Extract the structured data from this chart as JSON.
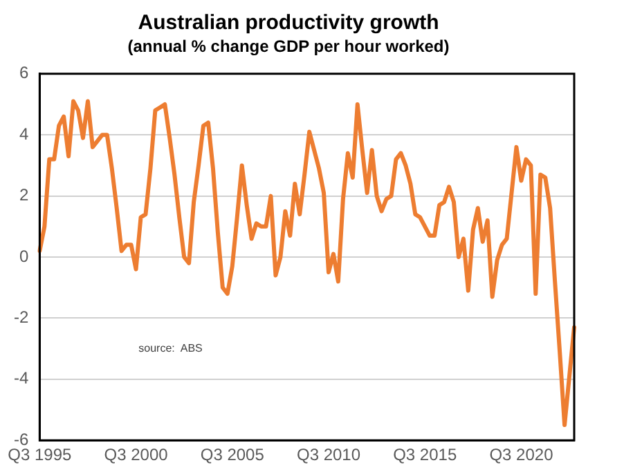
{
  "chart_data": {
    "type": "line",
    "title": "Australian productivity growth",
    "subtitle": "(annual % change GDP per hour worked)",
    "categories": [
      "Q3 1995",
      null,
      null,
      null,
      null,
      null,
      null,
      null,
      null,
      null,
      null,
      null,
      null,
      null,
      null,
      null,
      null,
      null,
      null,
      null,
      "Q3 2000",
      null,
      null,
      null,
      null,
      null,
      null,
      null,
      null,
      null,
      null,
      null,
      null,
      null,
      null,
      null,
      null,
      null,
      null,
      null,
      "Q3 2005",
      null,
      null,
      null,
      null,
      null,
      null,
      null,
      null,
      null,
      null,
      null,
      null,
      null,
      null,
      null,
      null,
      null,
      null,
      null,
      "Q3 2010",
      null,
      null,
      null,
      null,
      null,
      null,
      null,
      null,
      null,
      null,
      null,
      null,
      null,
      null,
      null,
      null,
      null,
      null,
      null,
      "Q3 2015",
      null,
      null,
      null,
      null,
      null,
      null,
      null,
      null,
      null,
      null,
      null,
      null,
      null,
      null,
      null,
      null,
      null,
      null,
      null,
      "Q3 2020",
      null,
      null,
      null,
      null,
      null,
      null,
      null,
      null,
      null,
      null,
      null
    ],
    "series": [
      {
        "color": "#ed7d31",
        "values": [
          0.2,
          1.0,
          3.2,
          3.2,
          4.3,
          4.6,
          3.3,
          5.1,
          4.8,
          3.9,
          5.1,
          3.6,
          3.8,
          4.0,
          4.0,
          2.9,
          1.6,
          0.2,
          0.4,
          0.4,
          -0.4,
          1.3,
          1.4,
          2.9,
          4.8,
          4.9,
          5.0,
          3.9,
          2.7,
          1.3,
          0.0,
          -0.2,
          1.8,
          3.0,
          4.3,
          4.4,
          2.9,
          0.8,
          -1.0,
          -1.2,
          -0.3,
          1.3,
          3.0,
          1.7,
          0.6,
          1.1,
          1.0,
          1.0,
          2.0,
          -0.6,
          0.0,
          1.5,
          0.7,
          2.4,
          1.4,
          2.7,
          4.1,
          3.5,
          2.9,
          2.1,
          -0.5,
          0.1,
          -0.8,
          1.9,
          3.4,
          2.6,
          5.0,
          3.5,
          2.1,
          3.5,
          2.0,
          1.5,
          1.9,
          2.0,
          3.2,
          3.4,
          3.0,
          2.4,
          1.4,
          1.3,
          1.0,
          0.7,
          0.7,
          1.7,
          1.8,
          2.3,
          1.8,
          0.0,
          0.6,
          -1.1,
          0.9,
          1.6,
          0.5,
          1.2,
          -1.3,
          -0.1,
          0.4,
          0.6,
          2.1,
          3.6,
          2.5,
          3.2,
          3.0,
          -1.2,
          2.7,
          2.6,
          1.6,
          -0.8,
          -3.1,
          -5.5,
          -3.9,
          -2.3
        ]
      }
    ],
    "ylim": [
      -6,
      6
    ],
    "yticks": [
      -6,
      -4,
      -2,
      0,
      2,
      4,
      6
    ],
    "grid": "y",
    "legend": false,
    "marker": "none",
    "line_style": "solid",
    "annotations": [
      "source:  ABS"
    ]
  }
}
